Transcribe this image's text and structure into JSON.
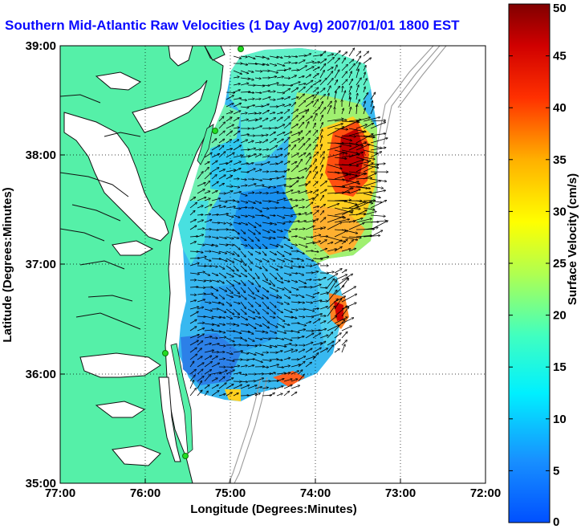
{
  "title": "Southern Mid-Atlantic Raw Velocities (1 Day Avg) 2007/01/01 1800 EST",
  "map": {
    "xlabel": "Longitude (Degrees:Minutes)",
    "ylabel": "Latitude (Degrees:Minutes)",
    "x_ticks": [
      "77:00",
      "76:00",
      "75:00",
      "74:00",
      "73:00",
      "72:00"
    ],
    "y_ticks": [
      "39:00",
      "38:00",
      "37:00",
      "36:00",
      "35:00"
    ],
    "lon_range": [
      -77,
      -72
    ],
    "lat_range": [
      35,
      39
    ],
    "colors": {
      "land": "#55f0a8",
      "coast_line": "#1a1a1a",
      "bathymetry": "#9a9a9a",
      "station": "#22dd22"
    }
  },
  "colorbar": {
    "label": "Surface Velocity (cm/s)",
    "ticks": [
      "0",
      "5",
      "10",
      "15",
      "20",
      "25",
      "30",
      "35",
      "40",
      "45",
      "50"
    ],
    "range": [
      0,
      50
    ],
    "colormap": "jet"
  }
}
